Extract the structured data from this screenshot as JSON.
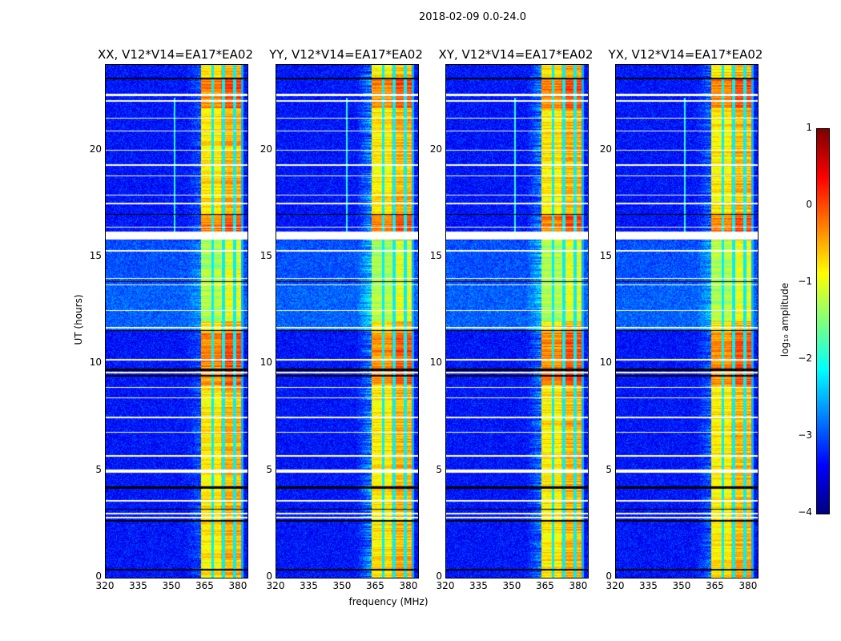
{
  "chart_data": {
    "type": "heatmap",
    "title": "2018-02-09 0.0-24.0",
    "xlabel": "frequency (MHz)",
    "ylabel": "UT (hours)",
    "xlim": [
      320,
      384
    ],
    "ylim": [
      0,
      24
    ],
    "xticks": [
      "320",
      "335",
      "350",
      "365",
      "380"
    ],
    "yticks": [
      "0",
      "5",
      "10",
      "15",
      "20"
    ],
    "panels": [
      {
        "title": "XX, V12*V14=EA17*EA02",
        "rfi_line_mhz": 351,
        "ramp": 0.3
      },
      {
        "title": "YY, V12*V14=EA17*EA02",
        "rfi_line_mhz": 351.5,
        "ramp": 0.6
      },
      {
        "title": "XY, V12*V14=EA17*EA02",
        "rfi_line_mhz": 351,
        "ramp": 0.5
      },
      {
        "title": "YX, V12*V14=EA17*EA02",
        "rfi_line_mhz": 351,
        "ramp": 0.4
      }
    ],
    "bright_band_mhz": [
      363,
      381
    ],
    "band_gaps_mhz": [
      368,
      373,
      378
    ],
    "flagged_white_hours": [
      [
        15.85,
        16.2
      ],
      [
        4.95,
        5.1
      ],
      [
        22.55,
        22.65
      ],
      [
        22.3,
        22.38
      ],
      [
        21.5,
        21.56
      ],
      [
        20.9,
        20.96
      ],
      [
        20.0,
        20.05
      ],
      [
        19.3,
        19.36
      ],
      [
        18.8,
        18.85
      ],
      [
        17.9,
        17.95
      ],
      [
        17.5,
        17.56
      ],
      [
        16.4,
        16.45
      ],
      [
        15.3,
        15.36
      ],
      [
        14.0,
        14.05
      ],
      [
        13.7,
        13.75
      ],
      [
        12.5,
        12.56
      ],
      [
        11.7,
        11.75
      ],
      [
        10.2,
        10.25
      ],
      [
        9.6,
        9.65
      ],
      [
        8.9,
        8.95
      ],
      [
        8.4,
        8.45
      ],
      [
        7.5,
        7.56
      ],
      [
        6.8,
        6.85
      ],
      [
        5.7,
        5.75
      ],
      [
        3.6,
        3.66
      ],
      [
        3.0,
        3.05
      ],
      [
        2.8,
        2.86
      ]
    ],
    "flagged_black_hours": [
      [
        23.35,
        23.42
      ],
      [
        17.0,
        17.05
      ],
      [
        13.85,
        13.9
      ],
      [
        11.55,
        11.62
      ],
      [
        9.7,
        9.8
      ],
      [
        9.45,
        9.5
      ],
      [
        4.2,
        4.28
      ],
      [
        3.2,
        3.26
      ],
      [
        2.65,
        2.72
      ],
      [
        0.35,
        0.42
      ]
    ],
    "colorbar": {
      "label": "log₁₀ amplitude",
      "ticks": [
        "1",
        "0",
        "−1",
        "−2",
        "−3",
        "−4"
      ],
      "range": [
        -4,
        1
      ],
      "colormap": "jet"
    }
  }
}
